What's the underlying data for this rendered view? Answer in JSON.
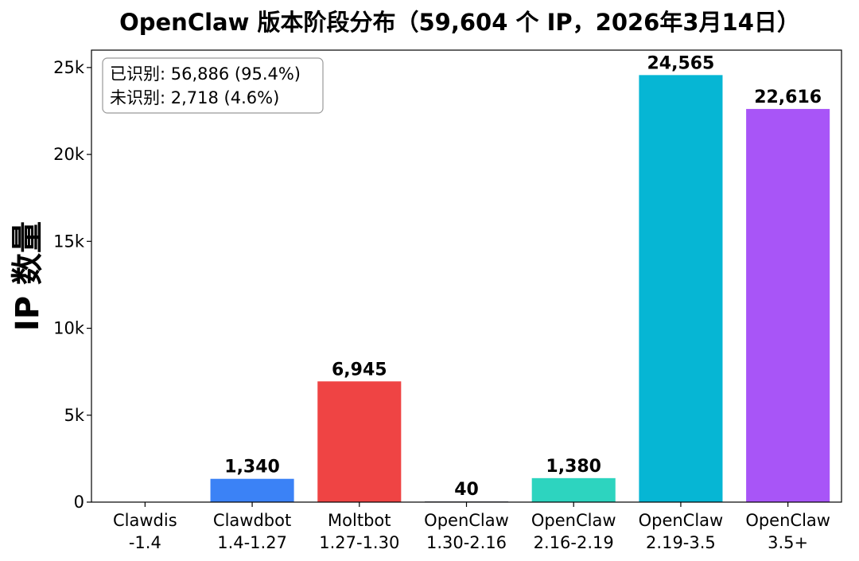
{
  "chart_data": {
    "type": "bar",
    "title": "OpenClaw 版本阶段分布（59,604 个 IP，2026年3月14日）",
    "xlabel": "",
    "ylabel": "IP 数量",
    "ylim": [
      0,
      26000
    ],
    "yticks": [
      0,
      5000,
      10000,
      15000,
      20000,
      25000
    ],
    "ytick_labels": [
      "0",
      "5k",
      "10k",
      "15k",
      "20k",
      "25k"
    ],
    "grid": false,
    "categories": [
      [
        "Clawdis",
        "-1.4"
      ],
      [
        "Clawdbot",
        "1.4-1.27"
      ],
      [
        "Moltbot",
        "1.27-1.30"
      ],
      [
        "OpenClaw",
        "1.30-2.16"
      ],
      [
        "OpenClaw",
        "2.16-2.19"
      ],
      [
        "OpenClaw",
        "2.19-3.5"
      ],
      [
        "OpenClaw",
        "3.5+"
      ]
    ],
    "values": [
      0,
      1340,
      6945,
      40,
      1380,
      24565,
      22616
    ],
    "value_labels": [
      "",
      "1,340",
      "6,945",
      "40",
      "1,380",
      "24,565",
      "22,616"
    ],
    "colors": [
      "#cccccc",
      "#3b82f6",
      "#ef4444",
      "#6b7280",
      "#2dd4bf",
      "#06b6d4",
      "#a855f7"
    ],
    "annotation": {
      "placement": "top-left",
      "lines": [
        "已识别: 56,886 (95.4%)",
        "未识别: 2,718 (4.6%)"
      ]
    }
  }
}
